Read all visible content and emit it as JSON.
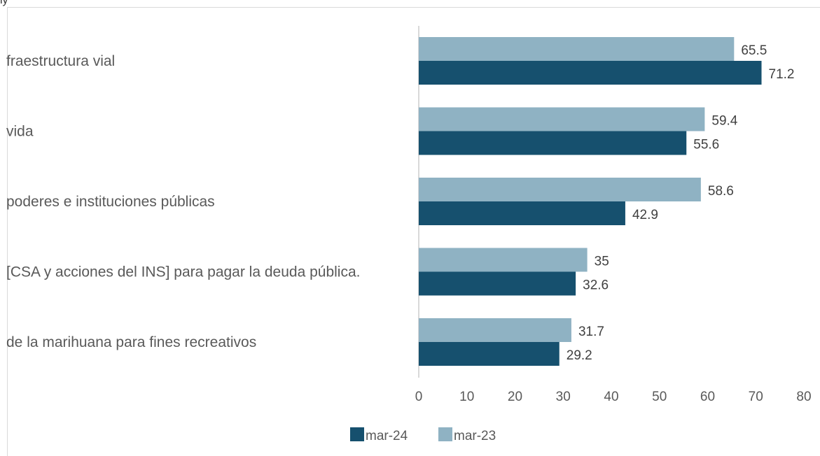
{
  "top_fragment": "ly",
  "colors": {
    "mar24": "#16506e",
    "mar23": "#8fb2c3",
    "axis": "#d9d9d9"
  },
  "chart_data": {
    "type": "bar",
    "orientation": "horizontal",
    "categories": [
      "fraestructura vial",
      " vida",
      "poderes e instituciones públicas",
      "[CSA y acciones del INS] para pagar la deuda pública.",
      "de la marihuana para fines recreativos"
    ],
    "series": [
      {
        "name": "mar-23",
        "values": [
          65.5,
          59.4,
          58.6,
          35,
          31.7
        ]
      },
      {
        "name": "mar-24",
        "values": [
          71.2,
          55.6,
          42.9,
          32.6,
          29.2
        ]
      }
    ],
    "xlim": [
      0,
      80
    ],
    "xticks": [
      "0",
      "10",
      "20",
      "30",
      "40",
      "50",
      "60",
      "70",
      "80"
    ],
    "data_labels": [
      [
        "65.5",
        "59.4",
        "58.6",
        "35",
        "31.7"
      ],
      [
        "71.2",
        "55.6",
        "42.9",
        "32.6",
        "29.2"
      ]
    ],
    "legend": {
      "position": "bottom",
      "entries": [
        "mar-24",
        "mar-23"
      ]
    },
    "grid": false
  }
}
